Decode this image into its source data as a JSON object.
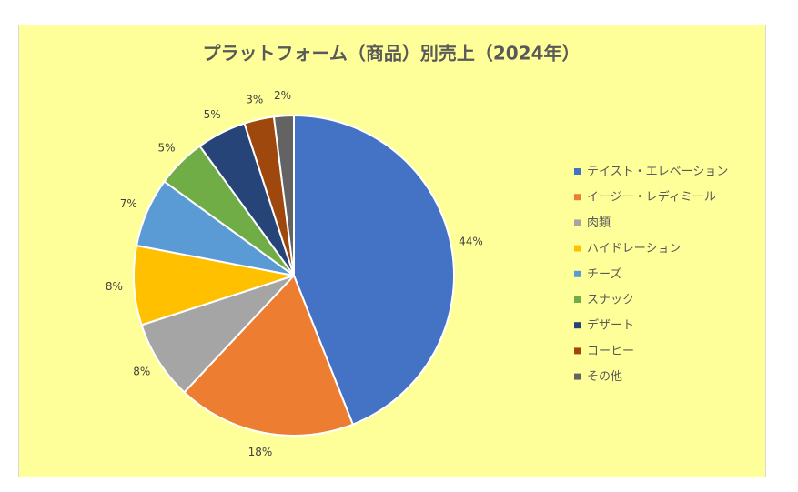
{
  "chart_data": {
    "type": "pie",
    "title": "プラットフォーム（商品）別売上（2024年）",
    "categories": [
      "テイスト・エレベーション",
      "イージー・レディミール",
      "肉類",
      "ハイドレーション",
      "チーズ",
      "スナック",
      "デザート",
      "コーヒー",
      "その他"
    ],
    "values": [
      44,
      18,
      8,
      8,
      7,
      5,
      5,
      3,
      2
    ],
    "value_labels": [
      "44%",
      "18%",
      "8%",
      "8%",
      "7%",
      "5%",
      "5%",
      "3%",
      "2%"
    ],
    "colors": [
      "#4472c4",
      "#ed7d31",
      "#a5a5a5",
      "#ffc000",
      "#5b9bd5",
      "#70ad47",
      "#264478",
      "#9e480e",
      "#636363"
    ],
    "legend": "right"
  }
}
